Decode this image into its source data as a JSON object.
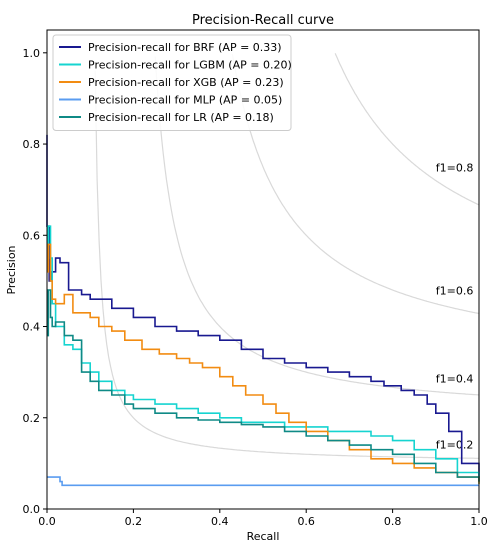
{
  "chart_data": {
    "type": "line",
    "title": "Precision-Recall curve",
    "xlabel": "Recall",
    "ylabel": "Precision",
    "xlim": [
      0,
      1
    ],
    "ylim": [
      0,
      1.05
    ],
    "xticks": [
      "0.0",
      "0.2",
      "0.4",
      "0.6",
      "0.8",
      "1.0"
    ],
    "yticks": [
      "0.0",
      "0.2",
      "0.4",
      "0.6",
      "0.8",
      "1.0"
    ],
    "grid": false,
    "legend_position": "top-left",
    "iso_f1": [
      {
        "f": 0.2,
        "label": "f1=0.2"
      },
      {
        "f": 0.4,
        "label": "f1=0.4"
      },
      {
        "f": 0.6,
        "label": "f1=0.6"
      },
      {
        "f": 0.8,
        "label": "f1=0.8"
      }
    ],
    "series": [
      {
        "name": "Precision-recall for  BRF (AP = 0.33)",
        "color": "#191990",
        "x": [
          0.0,
          0.0,
          0.005,
          0.01,
          0.02,
          0.03,
          0.05,
          0.08,
          0.1,
          0.15,
          0.2,
          0.25,
          0.3,
          0.35,
          0.4,
          0.45,
          0.5,
          0.55,
          0.6,
          0.65,
          0.7,
          0.75,
          0.78,
          0.82,
          0.85,
          0.88,
          0.9,
          0.93,
          0.96,
          1.0
        ],
        "y": [
          0.82,
          0.62,
          0.5,
          0.52,
          0.55,
          0.54,
          0.48,
          0.47,
          0.46,
          0.44,
          0.42,
          0.4,
          0.39,
          0.38,
          0.37,
          0.35,
          0.33,
          0.32,
          0.31,
          0.3,
          0.29,
          0.28,
          0.27,
          0.26,
          0.25,
          0.23,
          0.21,
          0.17,
          0.1,
          0.06
        ]
      },
      {
        "name": "Precision-recall for  LGBM (AP = 0.20)",
        "color": "#16d4d0",
        "x": [
          0.0,
          0.003,
          0.008,
          0.012,
          0.02,
          0.04,
          0.06,
          0.08,
          0.1,
          0.12,
          0.15,
          0.18,
          0.2,
          0.25,
          0.3,
          0.35,
          0.4,
          0.45,
          0.5,
          0.55,
          0.6,
          0.65,
          0.7,
          0.75,
          0.8,
          0.85,
          0.9,
          0.95,
          1.0
        ],
        "y": [
          0.58,
          0.62,
          0.55,
          0.45,
          0.4,
          0.36,
          0.35,
          0.32,
          0.3,
          0.28,
          0.26,
          0.25,
          0.24,
          0.23,
          0.22,
          0.21,
          0.2,
          0.19,
          0.19,
          0.18,
          0.18,
          0.17,
          0.17,
          0.16,
          0.15,
          0.13,
          0.11,
          0.08,
          0.055
        ]
      },
      {
        "name": "Precision-recall for  XGB (AP = 0.23)",
        "color": "#f28c12",
        "x": [
          0.0,
          0.003,
          0.008,
          0.012,
          0.02,
          0.04,
          0.06,
          0.08,
          0.1,
          0.12,
          0.15,
          0.18,
          0.22,
          0.26,
          0.3,
          0.33,
          0.36,
          0.4,
          0.43,
          0.46,
          0.5,
          0.53,
          0.56,
          0.6,
          0.65,
          0.7,
          0.75,
          0.8,
          0.85,
          0.9,
          0.95,
          1.0
        ],
        "y": [
          0.52,
          0.58,
          0.5,
          0.46,
          0.45,
          0.47,
          0.43,
          0.43,
          0.42,
          0.4,
          0.39,
          0.37,
          0.35,
          0.34,
          0.33,
          0.32,
          0.31,
          0.29,
          0.27,
          0.25,
          0.23,
          0.21,
          0.19,
          0.17,
          0.15,
          0.13,
          0.11,
          0.1,
          0.09,
          0.08,
          0.07,
          0.055
        ]
      },
      {
        "name": "Precision-recall for  MLP (AP = 0.05)",
        "color": "#5a9cf0",
        "x": [
          0.0,
          0.03,
          0.03,
          0.035,
          0.035,
          1.0
        ],
        "y": [
          0.07,
          0.07,
          0.06,
          0.06,
          0.052,
          0.052
        ]
      },
      {
        "name": "Precision-recall for  LR (AP = 0.18)",
        "color": "#0f8a86",
        "x": [
          0.0,
          0.003,
          0.008,
          0.012,
          0.02,
          0.04,
          0.06,
          0.08,
          0.1,
          0.12,
          0.15,
          0.18,
          0.2,
          0.25,
          0.3,
          0.35,
          0.4,
          0.45,
          0.5,
          0.55,
          0.6,
          0.65,
          0.7,
          0.75,
          0.8,
          0.85,
          0.9,
          0.95,
          1.0
        ],
        "y": [
          0.38,
          0.48,
          0.42,
          0.4,
          0.41,
          0.38,
          0.37,
          0.3,
          0.28,
          0.26,
          0.25,
          0.23,
          0.22,
          0.21,
          0.2,
          0.195,
          0.19,
          0.185,
          0.18,
          0.17,
          0.16,
          0.15,
          0.14,
          0.13,
          0.12,
          0.1,
          0.08,
          0.07,
          0.06
        ]
      }
    ]
  }
}
